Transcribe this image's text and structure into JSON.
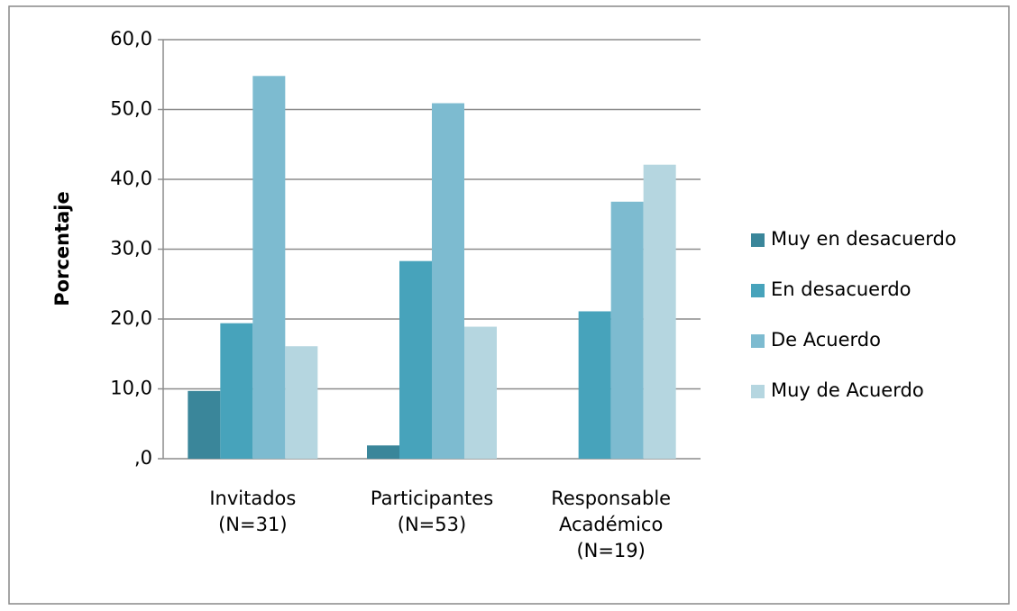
{
  "chart_data": {
    "type": "bar",
    "y_label": "Porcentaje",
    "categories": [
      "Invitados\n(N=31)",
      "Participantes\n(N=53)",
      "Responsable\nAcadémico\n(N=19)"
    ],
    "series": [
      {
        "name": "Muy en desacuerdo",
        "color": "#3a869a",
        "values": [
          9.7,
          1.9,
          0
        ]
      },
      {
        "name": "En desacuerdo",
        "color": "#47a3bb",
        "values": [
          19.4,
          28.3,
          21.1
        ]
      },
      {
        "name": "De Acuerdo",
        "color": "#7dbbd0",
        "values": [
          54.8,
          50.9,
          36.8
        ]
      },
      {
        "name": "Muy de Acuerdo",
        "color": "#b5d6e0",
        "values": [
          16.1,
          18.9,
          42.1
        ]
      }
    ],
    "ylim": [
      0,
      60
    ],
    "yticks": [
      {
        "value": 0,
        "label": ",0"
      },
      {
        "value": 10,
        "label": "10,0"
      },
      {
        "value": 20,
        "label": "20,0"
      },
      {
        "value": 30,
        "label": "30,0"
      },
      {
        "value": 40,
        "label": "40,0"
      },
      {
        "value": 50,
        "label": "50,0"
      },
      {
        "value": 60,
        "label": "60,0"
      }
    ],
    "grid": true,
    "legend": "right"
  }
}
